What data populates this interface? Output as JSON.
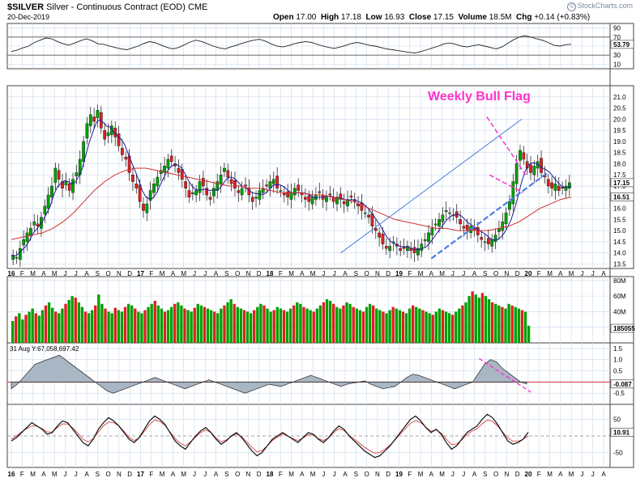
{
  "header": {
    "symbol": "$SILVER",
    "description": "Silver - Continuous Contract (EOD)",
    "exchange": "CME",
    "date": "20-Dec-2019",
    "open_label": "Open",
    "open": "17.00",
    "high_label": "High",
    "high": "17.18",
    "low_label": "Low",
    "low": "16.93",
    "close_label": "Close",
    "close": "17.15",
    "volume_label": "Volume",
    "volume": "18.5M",
    "chg_label": "Chg",
    "chg": "+0.14 (+0.83%)",
    "watermark": "StockCharts.com"
  },
  "chart_data": {
    "type": "candlestick",
    "time_axis": {
      "labels": [
        "16",
        "F",
        "M",
        "A",
        "M",
        "J",
        "J",
        "A",
        "S",
        "O",
        "N",
        "D",
        "17",
        "F",
        "M",
        "A",
        "M",
        "J",
        "J",
        "A",
        "S",
        "O",
        "N",
        "D",
        "18",
        "F",
        "M",
        "A",
        "M",
        "J",
        "J",
        "A",
        "S",
        "O",
        "N",
        "D",
        "19",
        "F",
        "M",
        "A",
        "M",
        "J",
        "J",
        "A",
        "S",
        "O",
        "N",
        "D",
        "20",
        "F",
        "M",
        "A",
        "M",
        "J",
        "J",
        "A"
      ],
      "start": "2016-01",
      "end": "2020-08"
    },
    "rsi_panel": {
      "ticks": [
        "90",
        "70",
        "50",
        "30",
        "10"
      ],
      "ylim": [
        0,
        100
      ],
      "last_value": "53.79",
      "series": [
        38,
        41,
        46,
        50,
        58,
        63,
        68,
        66,
        60,
        55,
        52,
        57,
        62,
        66,
        62,
        55,
        54,
        50,
        47,
        44,
        42,
        46,
        50,
        56,
        60,
        57,
        52,
        47,
        44,
        47,
        53,
        59,
        63,
        60,
        55,
        50,
        46,
        44,
        48,
        52,
        56,
        60,
        63,
        65,
        61,
        55,
        50,
        48,
        51,
        55,
        58,
        60,
        58,
        54,
        50,
        47,
        45,
        48,
        52,
        56,
        58,
        55,
        52,
        50,
        47,
        44,
        42,
        40,
        38,
        36,
        35,
        38,
        42,
        46,
        50,
        55,
        57,
        54,
        50,
        48,
        51,
        53,
        50,
        47,
        44,
        48,
        56,
        64,
        70,
        73,
        70,
        66,
        63,
        58,
        52,
        50,
        53,
        54
      ]
    },
    "price_panel": {
      "ticks": [
        "21.0",
        "20.5",
        "20.0",
        "19.5",
        "19.0",
        "18.5",
        "18.0",
        "17.5",
        "17.0",
        "16.5",
        "16.0",
        "15.5",
        "15.0",
        "14.5",
        "14.0",
        "13.5"
      ],
      "ylim": [
        13.3,
        21.5
      ],
      "last_close_label": "17.15",
      "ma_label": "16.51",
      "annotation": "Weekly Bull Flag",
      "closes": [
        13.9,
        13.8,
        14.2,
        14.6,
        14.9,
        15.1,
        15.4,
        15.2,
        15.6,
        16.1,
        16.6,
        17.0,
        17.8,
        17.3,
        16.9,
        17.2,
        16.8,
        17.3,
        17.6,
        18.2,
        19.0,
        19.8,
        20.2,
        19.9,
        20.4,
        19.6,
        19.1,
        19.4,
        19.7,
        19.2,
        18.8,
        18.4,
        18.2,
        17.6,
        17.2,
        16.9,
        16.3,
        15.9,
        16.2,
        16.8,
        17.1,
        17.4,
        17.7,
        17.9,
        18.2,
        18.1,
        17.9,
        17.6,
        17.3,
        16.9,
        16.5,
        16.7,
        16.8,
        17.2,
        17.0,
        16.6,
        16.4,
        16.9,
        17.2,
        17.5,
        17.8,
        17.4,
        17.1,
        16.9,
        16.7,
        16.9,
        17.0,
        16.6,
        16.3,
        16.5,
        16.8,
        16.9,
        17.0,
        17.2,
        17.3,
        16.9,
        16.8,
        16.6,
        16.5,
        16.7,
        16.9,
        16.8,
        16.6,
        16.4,
        16.3,
        16.5,
        16.6,
        16.7,
        16.4,
        16.5,
        16.6,
        16.3,
        16.5,
        16.4,
        16.2,
        16.4,
        16.5,
        16.3,
        16.1,
        15.9,
        15.8,
        15.6,
        15.2,
        15.0,
        14.7,
        14.4,
        14.2,
        14.3,
        14.5,
        14.3,
        14.1,
        14.2,
        14.3,
        14.1,
        14.0,
        14.2,
        14.4,
        14.6,
        14.9,
        15.1,
        15.3,
        15.5,
        15.7,
        15.9,
        15.8,
        15.7,
        15.6,
        15.3,
        15.1,
        15.0,
        15.2,
        15.0,
        14.8,
        14.6,
        14.5,
        14.4,
        14.6,
        14.8,
        15.1,
        15.4,
        15.8,
        16.3,
        17.2,
        18.0,
        18.6,
        18.2,
        17.8,
        17.6,
        17.9,
        18.1,
        17.6,
        17.4,
        17.0,
        16.9,
        17.1,
        16.8,
        16.9,
        17.0,
        17.15
      ],
      "ma_slow": [
        14.6,
        14.7,
        14.8,
        14.9,
        15.1,
        15.4,
        15.8,
        16.3,
        16.8,
        17.2,
        17.5,
        17.7,
        17.8,
        17.8,
        17.7,
        17.6,
        17.5,
        17.4,
        17.3,
        17.2,
        17.1,
        17.0,
        17.0,
        16.9,
        16.9,
        16.8,
        16.7,
        16.7,
        16.7,
        16.6,
        16.6,
        16.5,
        16.4,
        16.3,
        16.1,
        15.9,
        15.7,
        15.5,
        15.4,
        15.3,
        15.2,
        15.1,
        15.1,
        15.0,
        15.0,
        15.0,
        15.0,
        15.1,
        15.2,
        15.4,
        15.7,
        16.0,
        16.2,
        16.4,
        16.5
      ],
      "upper_channel": [
        [
          2018.55,
          14.0
        ],
        [
          2019.95,
          20.0
        ]
      ],
      "lower_channel": [
        [
          2019.25,
          13.75
        ],
        [
          2020.15,
          17.6
        ]
      ],
      "flag_upper": [
        [
          2019.68,
          20.1
        ],
        [
          2019.98,
          17.5
        ]
      ],
      "flag_lower": [
        [
          2019.7,
          17.5
        ],
        [
          2019.96,
          16.7
        ]
      ]
    },
    "volume_panel": {
      "ticks": [
        "80M",
        "60M",
        "40M",
        "20M"
      ],
      "ylim": [
        0,
        85
      ],
      "last_value_label": "185055",
      "series": [
        28,
        34,
        38,
        30,
        36,
        40,
        44,
        38,
        35,
        42,
        48,
        52,
        45,
        40,
        38,
        44,
        50,
        55,
        60,
        58,
        52,
        46,
        40,
        38,
        42,
        48,
        62,
        50,
        44,
        40,
        38,
        45,
        42,
        40,
        46,
        50,
        48,
        44,
        40,
        38,
        42,
        46,
        50,
        54,
        48,
        44,
        40,
        42,
        46,
        50,
        52,
        48,
        44,
        42,
        40,
        45,
        50,
        48,
        46,
        44,
        42,
        40,
        38,
        44,
        48,
        52,
        56,
        50,
        46,
        44,
        42,
        40,
        38,
        42,
        46,
        50,
        48,
        44,
        40,
        42,
        46,
        44,
        42,
        40,
        44,
        48,
        52,
        50,
        46,
        44,
        42,
        40,
        44,
        48,
        52,
        56,
        54,
        50,
        46,
        44,
        48,
        52,
        50,
        46,
        44,
        42,
        40,
        46,
        50,
        48,
        44,
        42,
        40,
        38,
        42,
        46,
        44,
        42,
        40,
        38,
        44,
        48,
        46,
        44,
        42,
        40,
        38,
        36,
        40,
        44,
        42,
        40,
        38,
        36,
        40,
        44,
        48,
        52,
        60,
        66,
        62,
        58,
        64,
        60,
        56,
        52,
        50,
        48,
        46,
        44,
        50,
        48,
        46,
        44,
        42,
        40,
        22
      ]
    },
    "macd_panel": {
      "title": "31 Aug Y:67,058,697.42",
      "ticks": [
        "1.5",
        "1.0",
        "0.5",
        "-0.5"
      ],
      "ylim": [
        -1.0,
        1.75
      ],
      "last_value_label": "-0.087",
      "series": [
        -0.3,
        -0.1,
        0.2,
        0.5,
        0.8,
        0.9,
        1.0,
        1.1,
        1.2,
        1.0,
        0.8,
        0.6,
        0.4,
        0.2,
        0.0,
        -0.2,
        -0.4,
        -0.5,
        -0.4,
        -0.3,
        -0.2,
        -0.1,
        0.0,
        0.1,
        0.2,
        0.1,
        0.0,
        -0.1,
        -0.2,
        -0.3,
        -0.2,
        -0.1,
        0.0,
        0.1,
        0.0,
        -0.1,
        -0.2,
        -0.3,
        -0.4,
        -0.5,
        -0.4,
        -0.3,
        -0.2,
        -0.1,
        -0.15,
        -0.2,
        -0.1,
        0.0,
        0.1,
        0.2,
        0.3,
        0.2,
        0.1,
        0.0,
        -0.1,
        -0.2,
        -0.1,
        -0.05,
        0.0,
        0.05,
        -0.1,
        -0.2,
        -0.3,
        -0.25,
        -0.2,
        0.0,
        0.2,
        0.35,
        0.3,
        0.2,
        0.1,
        0.0,
        -0.1,
        -0.2,
        -0.3,
        -0.2,
        -0.1,
        0.0,
        0.4,
        0.8,
        1.0,
        0.9,
        0.6,
        0.4,
        0.2,
        0.0,
        -0.087
      ]
    },
    "osc_panel": {
      "ticks": [
        "50",
        "-50"
      ],
      "ylim": [
        -95,
        95
      ],
      "last_value_label": "10.91",
      "series": [
        -15,
        -5,
        10,
        25,
        40,
        30,
        20,
        5,
        10,
        30,
        45,
        40,
        20,
        0,
        -20,
        -30,
        -10,
        20,
        40,
        55,
        45,
        30,
        10,
        -10,
        -20,
        -5,
        20,
        45,
        60,
        50,
        35,
        10,
        -15,
        -30,
        -40,
        -20,
        0,
        15,
        25,
        10,
        -10,
        -25,
        -15,
        0,
        10,
        -5,
        -25,
        -45,
        -60,
        -50,
        -30,
        -10,
        0,
        10,
        0,
        -10,
        -20,
        -5,
        10,
        5,
        -10,
        -20,
        -5,
        15,
        30,
        20,
        0,
        -15,
        -30,
        -45,
        -55,
        -65,
        -60,
        -45,
        -30,
        -10,
        10,
        30,
        50,
        60,
        45,
        25,
        10,
        20,
        5,
        -20,
        -40,
        -30,
        -10,
        10,
        20,
        30,
        50,
        65,
        55,
        35,
        10,
        -15,
        -25,
        -20,
        -10,
        10.91
      ],
      "signal": [
        -10,
        0,
        12,
        22,
        30,
        30,
        22,
        12,
        12,
        25,
        36,
        36,
        24,
        8,
        -10,
        -18,
        -8,
        12,
        30,
        42,
        40,
        30,
        14,
        -4,
        -14,
        -6,
        14,
        34,
        48,
        44,
        32,
        12,
        -8,
        -22,
        -30,
        -18,
        -4,
        10,
        18,
        10,
        -6,
        -18,
        -12,
        -2,
        6,
        -2,
        -18,
        -34,
        -48,
        -44,
        -30,
        -14,
        -4,
        6,
        0,
        -8,
        -14,
        -6,
        4,
        2,
        -8,
        -14,
        -6,
        10,
        22,
        16,
        2,
        -10,
        -22,
        -34,
        -44,
        -52,
        -50,
        -40,
        -28,
        -12,
        6,
        22,
        38,
        46,
        40,
        26,
        14,
        18,
        8,
        -10,
        -26,
        -24,
        -12,
        4,
        14,
        22,
        36,
        48,
        44,
        30,
        12,
        -6,
        -16,
        -16,
        -10,
        0
      ]
    }
  },
  "colors": {
    "up_candle": "#00a000",
    "down_candle": "#e02020",
    "fast_ma": "#1a1aa0",
    "slow_ma": "#d03030",
    "channel": "#4a7ee0",
    "flag": "#ff33cc",
    "grid": "#c8d8ea",
    "panel_border": "#444444"
  }
}
